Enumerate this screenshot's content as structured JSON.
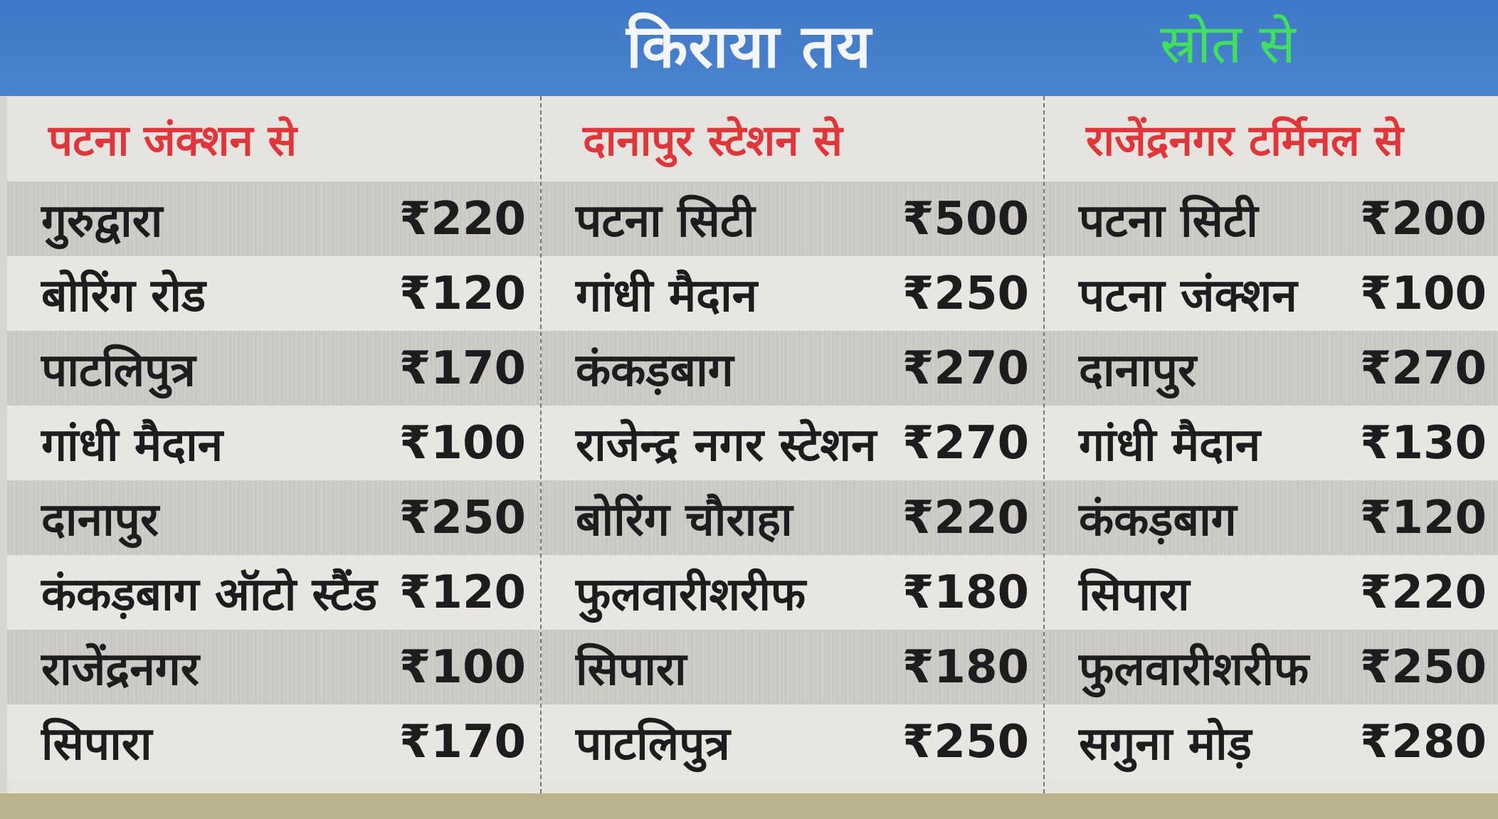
{
  "header": {
    "title": "किराया तय",
    "source_label": "स्रोत से"
  },
  "colors": {
    "banner": "#4a84cf",
    "column_heading": "#e2353a",
    "source_label": "#3fe05a"
  },
  "columns": [
    {
      "heading": "पटना जंक्शन से",
      "rows": [
        {
          "destination": "गुरुद्वारा",
          "fare": "₹220"
        },
        {
          "destination": "बोरिंग रोड",
          "fare": "₹120"
        },
        {
          "destination": "पाटलिपुत्र",
          "fare": "₹170"
        },
        {
          "destination": "गांधी मैदान",
          "fare": "₹100"
        },
        {
          "destination": "दानापुर",
          "fare": "₹250"
        },
        {
          "destination": "कंकड़बाग ऑटो स्टैंड",
          "fare": "₹120"
        },
        {
          "destination": "राजेंद्रनगर",
          "fare": "₹100"
        },
        {
          "destination": "सिपारा",
          "fare": "₹170"
        }
      ]
    },
    {
      "heading": "दानापुर स्टेशन से",
      "rows": [
        {
          "destination": "पटना सिटी",
          "fare": "₹500"
        },
        {
          "destination": "गांधी मैदान",
          "fare": "₹250"
        },
        {
          "destination": "कंकड़बाग",
          "fare": "₹270"
        },
        {
          "destination": "राजेन्द्र नगर स्टेशन",
          "fare": "₹270"
        },
        {
          "destination": "बोरिंग चौराहा",
          "fare": "₹220"
        },
        {
          "destination": "फुलवारीशरीफ",
          "fare": "₹180"
        },
        {
          "destination": "सिपारा",
          "fare": "₹180"
        },
        {
          "destination": "पाटलिपुत्र",
          "fare": "₹250"
        }
      ]
    },
    {
      "heading": "राजेंद्रनगर टर्मिनल से",
      "rows": [
        {
          "destination": "पटना सिटी",
          "fare": "₹200"
        },
        {
          "destination": "पटना जंक्शन",
          "fare": "₹100"
        },
        {
          "destination": "दानापुर",
          "fare": "₹270"
        },
        {
          "destination": "गांधी मैदान",
          "fare": "₹130"
        },
        {
          "destination": "कंकड़बाग",
          "fare": "₹120"
        },
        {
          "destination": "सिपारा",
          "fare": "₹220"
        },
        {
          "destination": "फुलवारीशरीफ",
          "fare": "₹250"
        },
        {
          "destination": "सगुना मोड़",
          "fare": "₹280"
        }
      ]
    }
  ]
}
